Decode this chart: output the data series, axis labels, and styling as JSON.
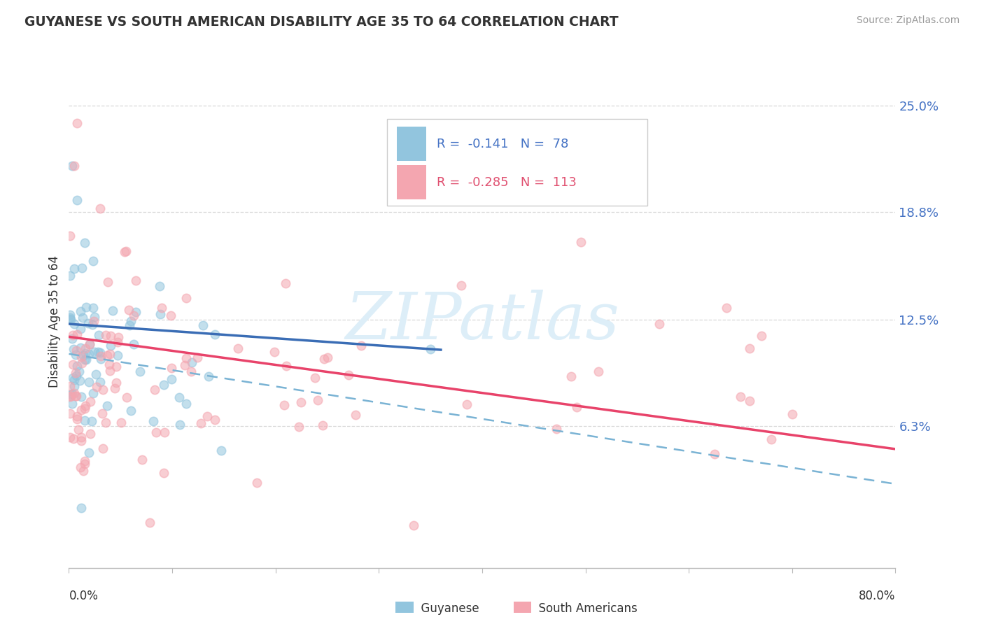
{
  "title": "GUYANESE VS SOUTH AMERICAN DISABILITY AGE 35 TO 64 CORRELATION CHART",
  "source": "Source: ZipAtlas.com",
  "ylabel": "Disability Age 35 to 64",
  "xlim": [
    0.0,
    0.8
  ],
  "ylim": [
    -0.02,
    0.268
  ],
  "ytick_vals": [
    0.063,
    0.125,
    0.188,
    0.25
  ],
  "ytick_labels": [
    "6.3%",
    "12.5%",
    "18.8%",
    "25.0%"
  ],
  "guyanese_color": "#92c5de",
  "south_american_color": "#f4a6b0",
  "trend_guyanese_color": "#3a6db5",
  "trend_south_american_color": "#e8436a",
  "dashed_color": "#7ab3d4",
  "watermark_color": "#ddeef8",
  "guy_slope": -0.042,
  "guy_intercept": 0.1225,
  "sa_slope": -0.082,
  "sa_intercept": 0.115,
  "dash_slope": -0.095,
  "dash_intercept": 0.105
}
